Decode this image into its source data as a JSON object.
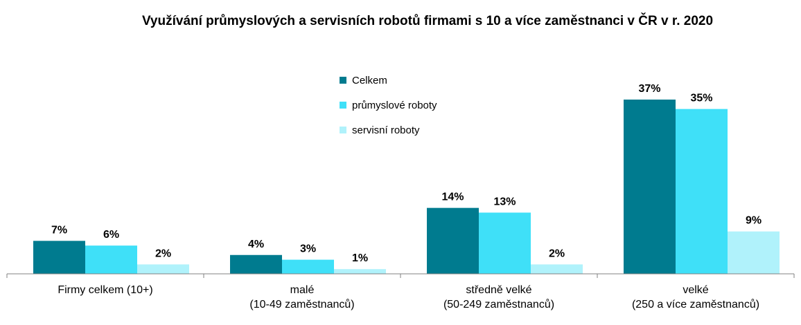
{
  "chart_data": {
    "type": "bar",
    "title": "Využívání průmyslových a servisních robotů firmami s 10 a více zaměstnanci v ČR v r. 2020",
    "categories": [
      [
        "Firmy celkem (10+)"
      ],
      [
        "malé",
        "(10-49 zaměstnanců)"
      ],
      [
        "středně velké",
        "(50-249 zaměstnanců)"
      ],
      [
        "velké",
        "(250 a více zaměstnanců)"
      ]
    ],
    "series": [
      {
        "name": "Celkem",
        "color": "#007b8f",
        "values": [
          7,
          4,
          14,
          37
        ],
        "labels": [
          "7%",
          "4%",
          "14%",
          "37%"
        ]
      },
      {
        "name": "průmyslové roboty",
        "color": "#3fe0f8",
        "values": [
          6,
          3,
          13,
          35
        ],
        "labels": [
          "6%",
          "3%",
          "13%",
          "35%"
        ]
      },
      {
        "name": "servisní roboty",
        "color": "#b0f2fb",
        "values": [
          2,
          1,
          2,
          9
        ],
        "labels": [
          "2%",
          "1%",
          "2%",
          "9%"
        ]
      }
    ],
    "unit": "%",
    "ylim": [
      0,
      37
    ],
    "grid": false,
    "legend": "top-center"
  }
}
